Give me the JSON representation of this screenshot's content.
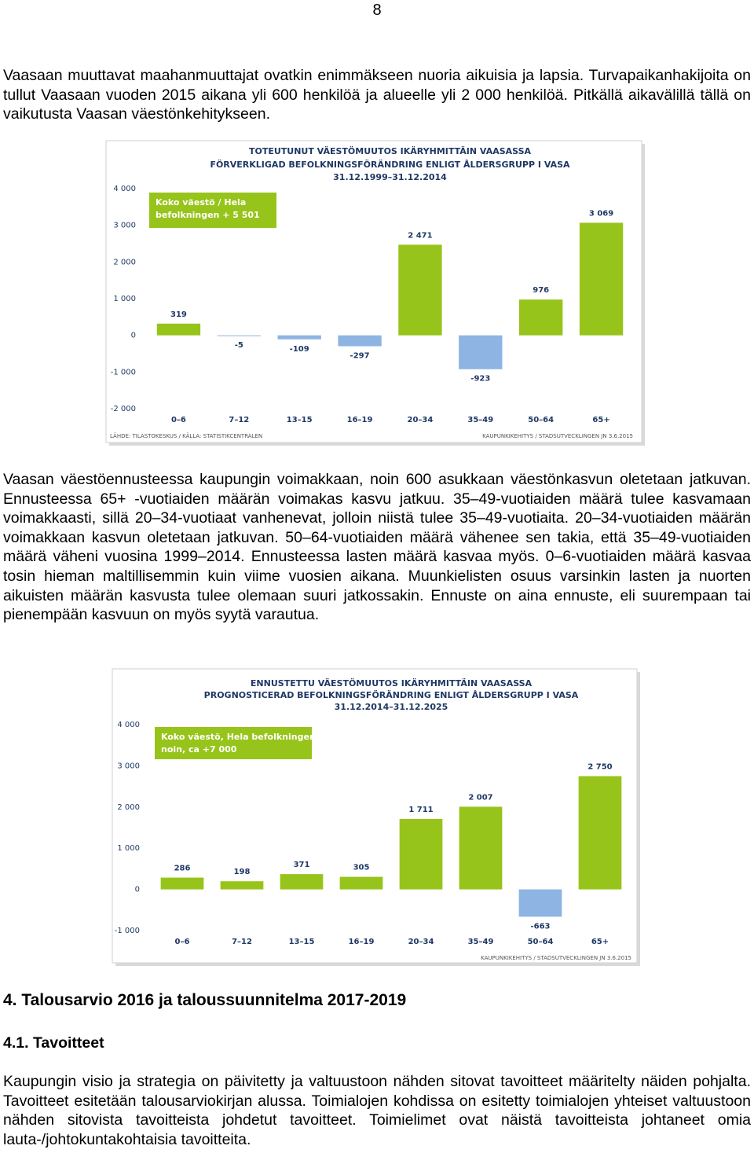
{
  "page_number": "8",
  "paragraphs": [
    "Vaasaan muuttavat maahanmuuttajat ovatkin enimmäkseen nuoria aikuisia ja lapsia. Turvapaikanhakijoita on tullut Vaasaan vuoden 2015 aikana yli 600 henkilöä ja alueelle yli 2 000 henkilöä. Pitkällä aikavälillä tällä on vaikutusta Vaasan väestönkehitykseen.",
    "Vaasan väestöennusteessa kaupungin voimakkaan, noin 600 asukkaan väestönkasvun oletetaan jatkuvan. Ennusteessa 65+ -vuotiaiden määrän voimakas kasvu jatkuu. 35–49-vuotiaiden määrä tulee kasvamaan voimakkaasti, sillä 20–34-vuotiaat vanhenevat, jolloin niistä tulee 35–49-vuotiaita. 20–34-vuotiaiden määrän voimakkaan kasvun oletetaan jatkuvan. 50–64-vuotiaiden määrä vähenee sen takia, että 35–49-vuotiaiden määrä väheni vuosina 1999–2014. Ennusteessa lasten määrä kasvaa myös. 0–6-vuotiaiden määrä kasvaa tosin hieman maltillisemmin kuin viime vuosien aikana. Muunkielisten osuus varsinkin lasten ja nuorten aikuisten määrän kasvusta tulee olemaan suuri jatkossakin. Ennuste on aina ennuste, eli suurempaan tai pienempään kasvuun on myös syytä varautua."
  ],
  "heading": "4. Talousarvio 2016 ja taloussuunnitelma 2017-2019",
  "subheading": "4.1. Tavoitteet",
  "closing_paragraph": "Kaupungin visio ja strategia on päivitetty ja valtuustoon nähden sitovat tavoitteet määritelty näiden pohjalta. Tavoitteet esitetään talousarviokirjan alussa. Toimialojen kohdissa on esitetty toimialojen yhteiset valtuustoon nähden sitovista tavoitteista johdetut tavoitteet. Toimielimet ovat näistä tavoitteista johtaneet omia lauta-/johtokuntakohtaisia tavoitteita.",
  "chart_data": [
    {
      "type": "bar",
      "title": [
        "TOTEUTUNUT VÄESTÖMUUTOS IKÄRYHMITTÄIN VAASASSA",
        "FÖRVERKLIGAD BEFOLKNINGSFÖRÄNDRING ENLIGT ÅLDERSGRUPP I VASA",
        "31.12.1999–31.12.2014"
      ],
      "annotation": [
        "Koko väestö / Hela",
        "befolkningen + 5 501"
      ],
      "categories": [
        "0–6",
        "7–12",
        "13–15",
        "16–19",
        "20–34",
        "35–49",
        "50–64",
        "65+"
      ],
      "values": [
        319,
        -5,
        -109,
        -297,
        2471,
        -923,
        976,
        3069
      ],
      "value_labels": [
        "319",
        "-5",
        "-109",
        "-297",
        "2 471",
        "-923",
        "976",
        "3 069"
      ],
      "colors": [
        "#97c41a",
        "#8db4e2",
        "#8db4e2",
        "#8db4e2",
        "#97c41a",
        "#8db4e2",
        "#97c41a",
        "#97c41a"
      ],
      "ylim": [
        -2000,
        4000
      ],
      "yticks": [
        {
          "value": 4000,
          "label": "4 000"
        },
        {
          "value": 3000,
          "label": "3 000"
        },
        {
          "value": 2000,
          "label": "2 000"
        },
        {
          "value": 1000,
          "label": "1 000"
        },
        0,
        {
          "value": -1000,
          "label": "-1 000"
        },
        {
          "value": -2000,
          "label": "-2 000"
        }
      ],
      "source": "LÄHDE: TILASTOKESKUS / KÄLLA: STATISTIKCENTRALEN",
      "credit": "KAUPUNKIKEHITYS / STADSUTVECKLINGEN JN 3.6.2015"
    },
    {
      "type": "bar",
      "title": [
        "ENNUSTETTU VÄESTÖMUUTOS IKÄRYHMITTÄIN VAASASSA",
        "PROGNOSTICERAD BEFOLKNINGSFÖRÄNDRING ENLIGT ÅLDERSGRUPP I VASA",
        "31.12.2014–31.12.2025"
      ],
      "annotation": [
        "Koko väestö, Hela befolkningen",
        "noin, ca +7 000"
      ],
      "categories": [
        "0–6",
        "7–12",
        "13–15",
        "16–19",
        "20–34",
        "35–49",
        "50–64",
        "65+"
      ],
      "values": [
        286,
        198,
        371,
        305,
        1711,
        2007,
        -663,
        2750
      ],
      "value_labels": [
        "286",
        "198",
        "371",
        "305",
        "1 711",
        "2 007",
        "-663",
        "2 750"
      ],
      "colors": [
        "#97c41a",
        "#97c41a",
        "#97c41a",
        "#97c41a",
        "#97c41a",
        "#97c41a",
        "#8db4e2",
        "#97c41a"
      ],
      "ylim": [
        -1000,
        4000
      ],
      "yticks": [
        {
          "value": 4000,
          "label": "4 000"
        },
        {
          "value": 3000,
          "label": "3 000"
        },
        {
          "value": 2000,
          "label": "2 000"
        },
        {
          "value": 1000,
          "label": "1 000"
        },
        0,
        {
          "value": -1000,
          "label": "-1 000"
        }
      ],
      "credit": "KAUPUNKIKEHITYS / STADSUTVECKLINGEN JN 3.6.2015"
    }
  ]
}
